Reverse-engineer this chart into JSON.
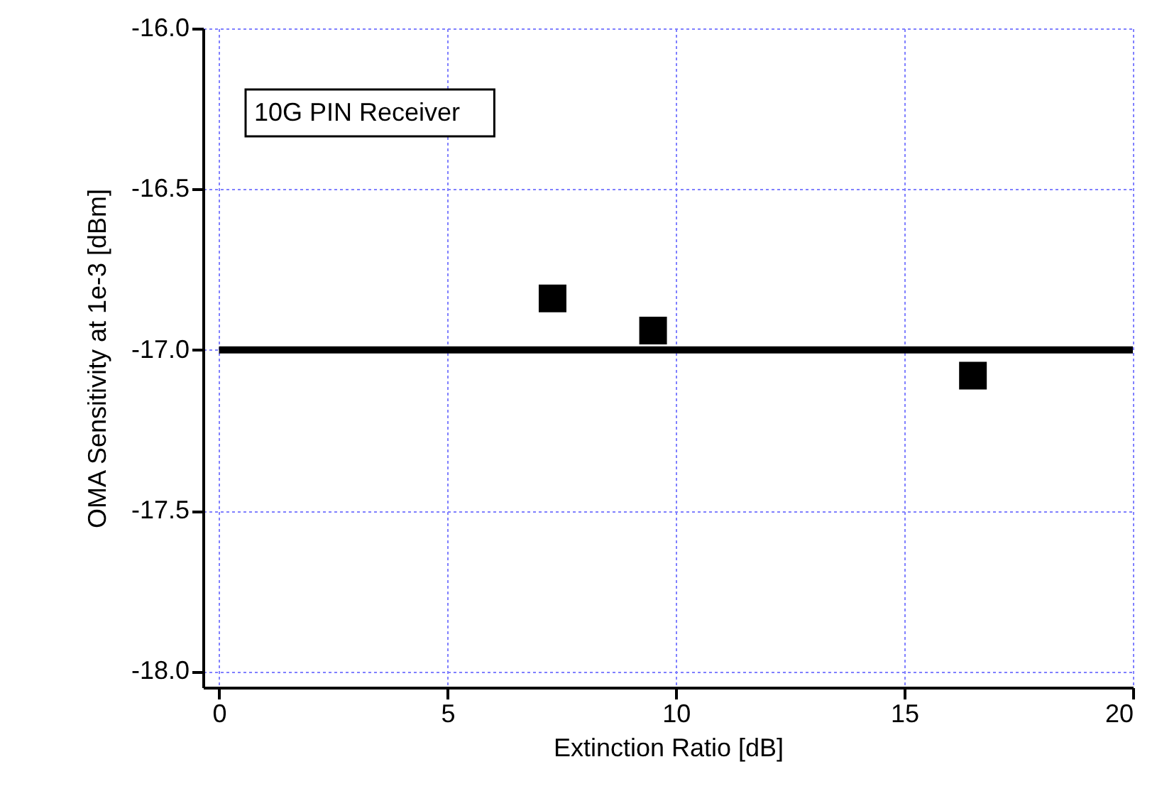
{
  "chart_data": {
    "type": "scatter",
    "xlabel": "Extinction Ratio [dB]",
    "ylabel": "OMA Sensitivity at 1e-3 [dBm]",
    "annotations": [
      "10G PIN Receiver"
    ],
    "series": [
      {
        "type": "scatter",
        "color": "#000000",
        "marker": "square",
        "x": [
          7.3,
          9.5,
          16.5
        ],
        "values": [
          -16.84,
          -16.94,
          -17.08
        ]
      },
      {
        "type": "line",
        "color": "#000000",
        "marker": "none",
        "line_style": "solid",
        "x": [
          0,
          20
        ],
        "values": [
          -17.0,
          -17.0
        ]
      }
    ],
    "xlim": [
      -0.35,
      20
    ],
    "ylim": [
      -18.05,
      -16.0
    ],
    "xticks": [
      0,
      5,
      10,
      15,
      20
    ],
    "yticks": [
      {
        "value": -18.0,
        "label": "-18.0"
      },
      {
        "value": -17.5,
        "label": "-17.5"
      },
      {
        "value": -17.0,
        "label": "-17.0"
      },
      {
        "value": -16.5,
        "label": "-16.5"
      },
      {
        "value": -16.0,
        "label": "-16.0"
      }
    ],
    "grid": true
  }
}
